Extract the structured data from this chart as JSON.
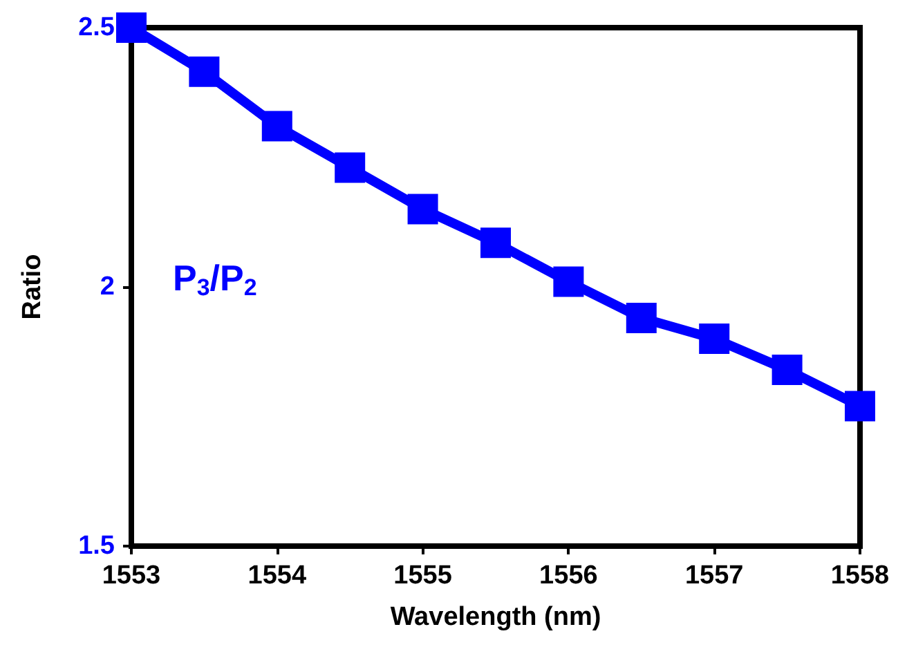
{
  "chart_data": {
    "type": "line",
    "xlabel": "Wavelength (nm)",
    "ylabel": "Ratio",
    "x": [
      1553,
      1553.5,
      1554,
      1554.5,
      1555,
      1555.5,
      1556,
      1556.5,
      1557,
      1557.5,
      1558
    ],
    "series": [
      {
        "name": "P$_{3}$/P$_{2}$",
        "color": "#0000ff",
        "values": [
          2.5,
          2.415,
          2.31,
          2.23,
          2.15,
          2.085,
          2.01,
          1.94,
          1.9,
          1.84,
          1.77
        ]
      }
    ],
    "xlim": [
      1553,
      1558
    ],
    "xticks": [
      1553,
      1554,
      1555,
      1556,
      1557,
      1558
    ],
    "ylim": [
      1.5,
      2.5
    ],
    "yticks": [
      1.5,
      2,
      2.5
    ],
    "grid": false,
    "marker": "square",
    "line_style": "solid"
  }
}
